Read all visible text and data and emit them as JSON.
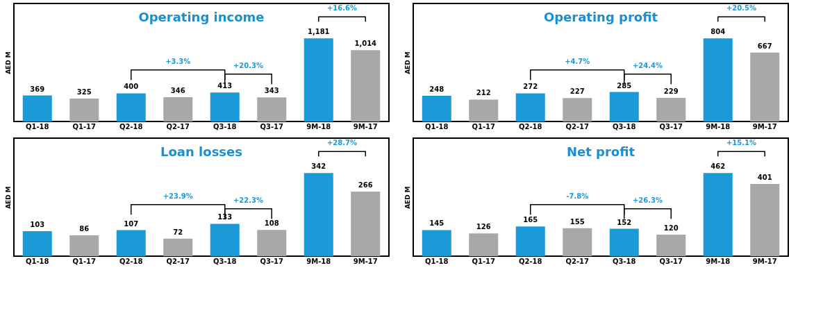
{
  "chart_data": [
    {
      "type": "bar",
      "title": "Operating income",
      "ylabel": "AED M",
      "tick_labels": "x",
      "categories": [
        "Q1-18",
        "Q1-17",
        "Q2-18",
        "Q2-17",
        "Q3-18",
        "Q3-17",
        "9M-18",
        "9M-17"
      ],
      "values": [
        369,
        325,
        400,
        346,
        413,
        343,
        1181,
        1014
      ],
      "value_labels": [
        "369",
        "325",
        "400",
        "346",
        "413",
        "343",
        "1,181",
        "1,014"
      ],
      "colors": [
        "#1b9ad8",
        "#a8a8a8",
        "#1b9ad8",
        "#a8a8a8",
        "#1b9ad8",
        "#a8a8a8",
        "#1b9ad8",
        "#a8a8a8"
      ],
      "annotations": [
        "+3.3%",
        "+20.3%",
        "+16.6%"
      ]
    },
    {
      "type": "bar",
      "title": "Operating profit",
      "ylabel": "AED M",
      "tick_labels": "x",
      "data_labels": true,
      "categories": [
        "Q1-18",
        "Q1-17",
        "Q2-18",
        "Q2-17",
        "Q3-18",
        "Q3-17",
        "9M-18",
        "9M-17"
      ],
      "values": [
        248,
        212,
        272,
        227,
        285,
        229,
        804,
        667
      ],
      "colors": [
        "#1b9ad8",
        "#a8a8a8",
        "#1b9ad8",
        "#a8a8a8",
        "#1b9ad8",
        "#a8a8a8",
        "#1b9ad8",
        "#a8a8a8"
      ],
      "annotations": [
        "+4.7%",
        "+24.4%",
        "+20.5%"
      ]
    },
    {
      "type": "bar",
      "title": "Loan losses",
      "ylabel": "AED M",
      "tick_labels": "x",
      "data_labels": true,
      "categories": [
        "Q1-18",
        "Q1-17",
        "Q2-18",
        "Q2-17",
        "Q3-18",
        "Q3-17",
        "9M-18",
        "9M-17"
      ],
      "values": [
        103,
        86,
        107,
        72,
        133,
        108,
        342,
        266
      ],
      "colors": [
        "#1b9ad8",
        "#a8a8a8",
        "#1b9ad8",
        "#a8a8a8",
        "#1b9ad8",
        "#a8a8a8",
        "#1b9ad8",
        "#a8a8a8"
      ],
      "annotations": [
        "+23.9%",
        "+22.3%",
        "+28.7%"
      ]
    },
    {
      "type": "bar",
      "title": "Net profit",
      "ylabel": "AED M",
      "tick_labels": "x",
      "data_labels": true,
      "categories": [
        "Q1-18",
        "Q1-17",
        "Q2-18",
        "Q2-17",
        "Q3-18",
        "Q3-17",
        "9M-18",
        "9M-17"
      ],
      "values": [
        145,
        126,
        165,
        155,
        152,
        120,
        462,
        401
      ],
      "colors": [
        "#1b9ad8",
        "#a8a8a8",
        "#1b9ad8",
        "#a8a8a8",
        "#1b9ad8",
        "#a8a8a8",
        "#1b9ad8",
        "#a8a8a8"
      ],
      "annotations": [
        "-7.8%",
        "+26.3%",
        "+15.1%"
      ]
    }
  ]
}
